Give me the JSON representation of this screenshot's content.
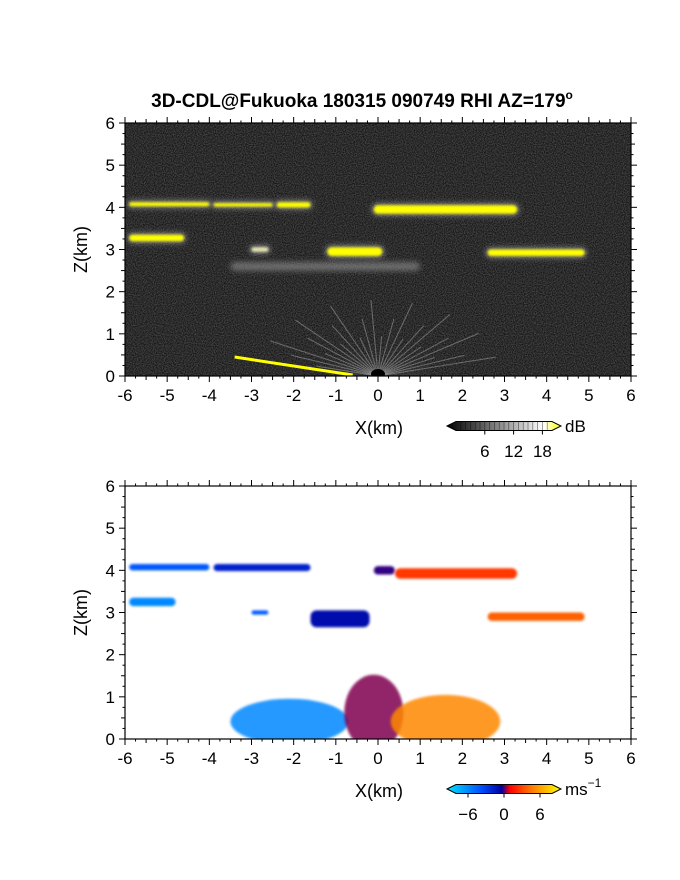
{
  "title": "3D-CDL@Fukuoka 180315 090749 RHI AZ=179",
  "title_degree": "o",
  "chart_data": [
    {
      "type": "heatmap",
      "name": "backscatter",
      "xlabel": "X(km)",
      "ylabel": "Z(km)",
      "xlim": [
        -6,
        6
      ],
      "ylim": [
        0,
        6
      ],
      "xticks": [
        "-6",
        "-5",
        "-4",
        "-3",
        "-2",
        "-1",
        "0",
        "1",
        "2",
        "3",
        "4",
        "5",
        "6"
      ],
      "yticks": [
        "0",
        "1",
        "2",
        "3",
        "4",
        "5",
        "6"
      ],
      "colorbar": {
        "unit": "dB",
        "ticks": [
          "6",
          "12",
          "18"
        ],
        "tick_values": [
          6,
          12,
          18
        ],
        "range": [
          0,
          20
        ],
        "colors": [
          "#000000",
          "#ffffff",
          "#ffff00"
        ]
      },
      "background": "#141414",
      "features": [
        {
          "kind": "layer",
          "x": [
            -5.9,
            -4.0
          ],
          "z": [
            4.03,
            4.12
          ],
          "level": "strong"
        },
        {
          "kind": "layer",
          "x": [
            -3.9,
            -2.5
          ],
          "z": [
            4.02,
            4.1
          ],
          "level": "strong"
        },
        {
          "kind": "layer",
          "x": [
            -2.4,
            -1.6
          ],
          "z": [
            4.0,
            4.12
          ],
          "level": "strong"
        },
        {
          "kind": "layer",
          "x": [
            -0.1,
            3.3
          ],
          "z": [
            3.85,
            4.05
          ],
          "level": "strong"
        },
        {
          "kind": "layer",
          "x": [
            -5.9,
            -4.6
          ],
          "z": [
            3.2,
            3.35
          ],
          "level": "strong"
        },
        {
          "kind": "layer",
          "x": [
            -1.2,
            0.1
          ],
          "z": [
            2.85,
            3.05
          ],
          "level": "strong"
        },
        {
          "kind": "layer",
          "x": [
            2.6,
            4.9
          ],
          "z": [
            2.85,
            3.0
          ],
          "level": "strong"
        },
        {
          "kind": "layer",
          "x": [
            -3.0,
            -2.6
          ],
          "z": [
            2.95,
            3.05
          ],
          "level": "medium"
        },
        {
          "kind": "haze",
          "x": [
            -3.5,
            1.0
          ],
          "z": [
            2.5,
            2.7
          ],
          "level": "weak"
        },
        {
          "kind": "boundary_layer",
          "x": [
            -1.5,
            1.5
          ],
          "z": [
            0,
            1.7
          ],
          "level": "medium"
        },
        {
          "kind": "ground_echo",
          "x": [
            -3.4,
            -0.6
          ],
          "z": [
            0.0,
            0.45
          ],
          "level": "strong"
        }
      ]
    },
    {
      "type": "heatmap",
      "name": "doppler_velocity",
      "xlabel": "X(km)",
      "ylabel": "Z(km)",
      "xlim": [
        -6,
        6
      ],
      "ylim": [
        0,
        6
      ],
      "xticks": [
        "-6",
        "-5",
        "-4",
        "-3",
        "-2",
        "-1",
        "0",
        "1",
        "2",
        "3",
        "4",
        "5",
        "6"
      ],
      "yticks": [
        "0",
        "1",
        "2",
        "3",
        "4",
        "5",
        "6"
      ],
      "colorbar": {
        "unit": "ms",
        "unit_superscript": "−1",
        "ticks": [
          "−6",
          "0",
          "6"
        ],
        "tick_values": [
          -6,
          0,
          6
        ],
        "range": [
          -8,
          8
        ],
        "colors": [
          "#00e5ff",
          "#0050ff",
          "#0000a0",
          "#ff0000",
          "#ff8000",
          "#ffff00"
        ]
      },
      "background": "#ffffff",
      "features": [
        {
          "kind": "layer",
          "x": [
            -5.9,
            -4.0
          ],
          "z": [
            4.0,
            4.15
          ],
          "velocity": -5
        },
        {
          "kind": "layer",
          "x": [
            -3.9,
            -1.6
          ],
          "z": [
            3.98,
            4.15
          ],
          "velocity": -3
        },
        {
          "kind": "layer",
          "x": [
            -0.1,
            0.4
          ],
          "z": [
            3.9,
            4.1
          ],
          "velocity": -1
        },
        {
          "kind": "layer",
          "x": [
            0.4,
            3.3
          ],
          "z": [
            3.8,
            4.05
          ],
          "velocity": 3
        },
        {
          "kind": "layer",
          "x": [
            -5.9,
            -4.8
          ],
          "z": [
            3.15,
            3.35
          ],
          "velocity": -6
        },
        {
          "kind": "layer",
          "x": [
            -3.0,
            -2.6
          ],
          "z": [
            2.95,
            3.05
          ],
          "velocity": -5
        },
        {
          "kind": "layer",
          "x": [
            -1.6,
            -0.2
          ],
          "z": [
            2.65,
            3.05
          ],
          "velocity": -2
        },
        {
          "kind": "layer",
          "x": [
            2.6,
            4.9
          ],
          "z": [
            2.8,
            3.0
          ],
          "velocity": 4
        },
        {
          "kind": "boundary_layer",
          "x": [
            -3.5,
            -0.7
          ],
          "z": [
            0.1,
            1.0
          ],
          "velocity": -6
        },
        {
          "kind": "boundary_layer",
          "x": [
            -0.8,
            0.6
          ],
          "z": [
            0.1,
            1.6
          ],
          "velocity": 0
        },
        {
          "kind": "boundary_layer",
          "x": [
            0.3,
            2.9
          ],
          "z": [
            0.05,
            1.1
          ],
          "velocity": 5
        }
      ]
    }
  ]
}
